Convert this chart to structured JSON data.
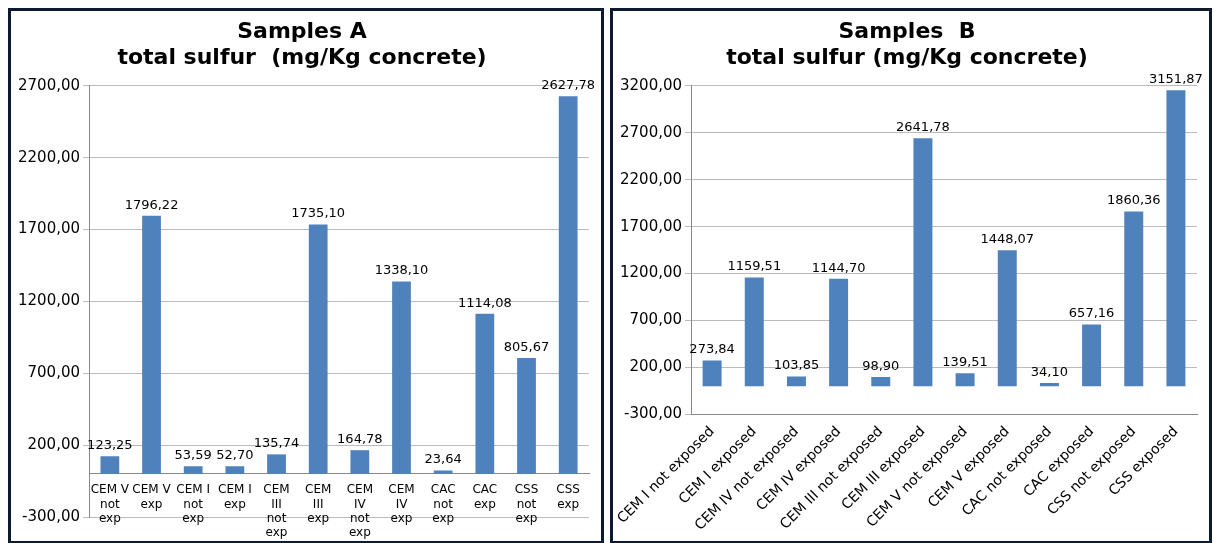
{
  "chart_data": [
    {
      "type": "bar",
      "title": "Samples A\ntotal sulfur  (mg/Kg concrete)",
      "categories": [
        "CEM V not exp",
        "CEM V exp",
        "CEM I not exp",
        "CEM I exp",
        "CEM III not exp",
        "CEM III exp",
        "CEM IV not exp",
        "CEM IV exp",
        "CAC not exp",
        "CAC exp",
        "CSS not exp",
        "CSS exp"
      ],
      "values": [
        123.25,
        1796.22,
        53.59,
        52.7,
        135.74,
        1735.1,
        164.78,
        1338.1,
        23.64,
        1114.08,
        805.67,
        2627.78
      ],
      "value_labels": [
        "123,25",
        "1796,22",
        "53,59",
        "52,70",
        "135,74",
        "1735,10",
        "164,78",
        "1338,10",
        "23,64",
        "1114,08",
        "805,67",
        "2627,78"
      ],
      "color": "#4f81bd",
      "ylim": [
        -300,
        2700
      ],
      "yticks": [
        {
          "value": -300,
          "label": "-300,00"
        },
        {
          "value": 200,
          "label": "200,00"
        },
        {
          "value": 700,
          "label": "700,00"
        },
        {
          "value": 1200,
          "label": "1200,00"
        },
        {
          "value": 1700,
          "label": "1700,00"
        },
        {
          "value": 2200,
          "label": "2200,00"
        },
        {
          "value": 2700,
          "label": "2700,00"
        }
      ],
      "grid": "y",
      "legend": false
    },
    {
      "type": "bar",
      "title": "Samples  B\ntotal sulfur (mg/Kg concrete)",
      "categories": [
        "CEM I not exposed",
        "CEM I exposed",
        "CEM IV not exposed",
        "CEM IV exposed",
        "CEM III not exposed",
        "CEM III exposed",
        "CEM V not exposed",
        "CEM V exposed",
        "CAC not exposed",
        "CAC exposed",
        "CSS not exposed",
        "CSS exposed"
      ],
      "values": [
        273.84,
        1159.51,
        103.85,
        1144.7,
        98.9,
        2641.78,
        139.51,
        1448.07,
        34.1,
        657.16,
        1860.36,
        3151.87
      ],
      "value_labels": [
        "273,84",
        "1159,51",
        "103,85",
        "1144,70",
        "98,90",
        "2641,78",
        "139,51",
        "1448,07",
        "34,10",
        "657,16",
        "1860,36",
        "3151,87"
      ],
      "color": "#4f81bd",
      "ylim": [
        -300,
        3200
      ],
      "yticks": [
        {
          "value": -300,
          "label": "-300,00"
        },
        {
          "value": 200,
          "label": "200,00"
        },
        {
          "value": 700,
          "label": "700,00"
        },
        {
          "value": 1200,
          "label": "1200,00"
        },
        {
          "value": 1700,
          "label": "1700,00"
        },
        {
          "value": 2200,
          "label": "2200,00"
        },
        {
          "value": 2700,
          "label": "2700,00"
        },
        {
          "value": 3200,
          "label": "3200,00"
        }
      ],
      "grid": "y",
      "legend": false
    }
  ]
}
